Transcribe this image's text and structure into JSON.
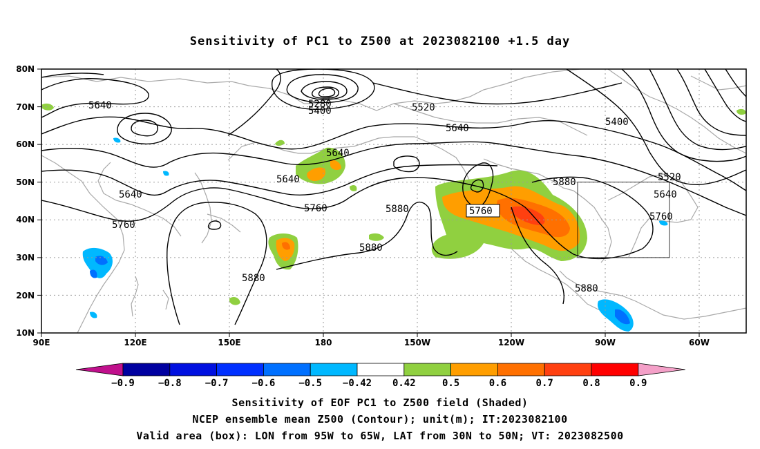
{
  "title": "Sensitivity of PC1 to Z500 at 2023082100 +1.5 day",
  "axes": {
    "lat_ticks": [
      "80N",
      "70N",
      "60N",
      "50N",
      "40N",
      "30N",
      "20N",
      "10N"
    ],
    "lon_ticks": [
      "90E",
      "120E",
      "150E",
      "180",
      "150W",
      "120W",
      "90W",
      "60W"
    ]
  },
  "contour_labels": [
    {
      "text": "5640"
    },
    {
      "text": "5640"
    },
    {
      "text": "5640"
    },
    {
      "text": "5640"
    },
    {
      "text": "5640"
    },
    {
      "text": "5640"
    },
    {
      "text": "5760"
    },
    {
      "text": "5760"
    },
    {
      "text": "5760"
    },
    {
      "text": "5760"
    },
    {
      "text": "5880"
    },
    {
      "text": "5880"
    },
    {
      "text": "5880"
    },
    {
      "text": "5880"
    },
    {
      "text": "5880"
    },
    {
      "text": "5520"
    },
    {
      "text": "5520"
    },
    {
      "text": "5400"
    },
    {
      "text": "5400"
    },
    {
      "text": "5280"
    }
  ],
  "colorbar": {
    "labels": [
      "-0.9",
      "-0.8",
      "-0.7",
      "-0.6",
      "-0.5",
      "-0.42",
      "0.42",
      "0.5",
      "0.6",
      "0.7",
      "0.8",
      "0.9"
    ],
    "colors": {
      "neg_tip": "#c0108c",
      "pos_tip": "#f4a0c8",
      "bins": [
        "#0000a0",
        "#0010e0",
        "#0030ff",
        "#0070ff",
        "#00b8ff",
        "#ffffff",
        "#90d040",
        "#ff9e00",
        "#ff7000",
        "#ff4010",
        "#ff0000"
      ]
    }
  },
  "box": {
    "lon_from": "95W",
    "lon_to": "65W",
    "lat_from": "30N",
    "lat_to": "50N"
  },
  "captions": [
    "Sensitivity of EOF PC1 to Z500 field (Shaded)",
    "NCEP ensemble mean Z500 (Contour); unit(m); IT:2023082100",
    "Valid area (box): LON from 95W to 65W, LAT from 30N to 50N; VT: 2023082500"
  ]
}
